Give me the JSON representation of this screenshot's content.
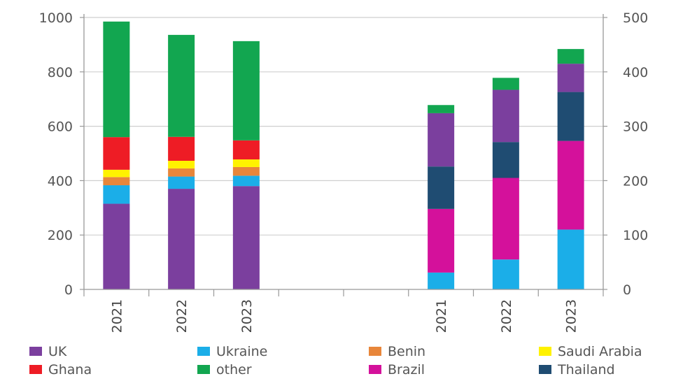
{
  "chart_data": {
    "type": "bar",
    "stacked": true,
    "grid": true,
    "legend_position": "bottom",
    "left_axis": {
      "ylim": [
        0,
        1000
      ],
      "ticks": [
        "0",
        "200",
        "400",
        "600",
        "800",
        "1000"
      ]
    },
    "right_axis": {
      "ylim": [
        0,
        500
      ],
      "ticks": [
        "0",
        "100",
        "200",
        "300",
        "400",
        "500"
      ]
    },
    "legend": [
      {
        "name": "UK",
        "color": "#7B3F9E"
      },
      {
        "name": "Ukraine",
        "color": "#1BAEE8"
      },
      {
        "name": "Benin",
        "color": "#E8863A"
      },
      {
        "name": "Saudi Arabia",
        "color": "#FFF200"
      },
      {
        "name": "Ghana",
        "color": "#EE1C25"
      },
      {
        "name": "other",
        "color": "#12A650"
      },
      {
        "name": "Brazil",
        "color": "#D4119B"
      },
      {
        "name": "Thailand",
        "color": "#1F4C72"
      }
    ],
    "groups": [
      {
        "axis": "left",
        "categories": [
          "2021",
          "2022",
          "2023"
        ],
        "series": [
          {
            "name": "UK",
            "values": [
              315,
              370,
              380
            ]
          },
          {
            "name": "Ukraine",
            "values": [
              68,
              45,
              38
            ]
          },
          {
            "name": "Benin",
            "values": [
              30,
              30,
              32
            ]
          },
          {
            "name": "Saudi Arabia",
            "values": [
              27,
              28,
              28
            ]
          },
          {
            "name": "Ghana",
            "values": [
              120,
              88,
              70
            ]
          },
          {
            "name": "other",
            "values": [
              425,
              375,
              365
            ]
          }
        ]
      },
      {
        "axis": "right",
        "categories": [
          "2021",
          "2022",
          "2023"
        ],
        "series": [
          {
            "name": "Ukraine",
            "values": [
              31,
              55,
              110
            ]
          },
          {
            "name": "Brazil",
            "values": [
              117,
              150,
              163
            ]
          },
          {
            "name": "Thailand",
            "values": [
              78,
              66,
              90
            ]
          },
          {
            "name": "UK",
            "values": [
              98,
              96,
              52
            ]
          },
          {
            "name": "other",
            "values": [
              15,
              22,
              27
            ]
          }
        ]
      }
    ]
  }
}
